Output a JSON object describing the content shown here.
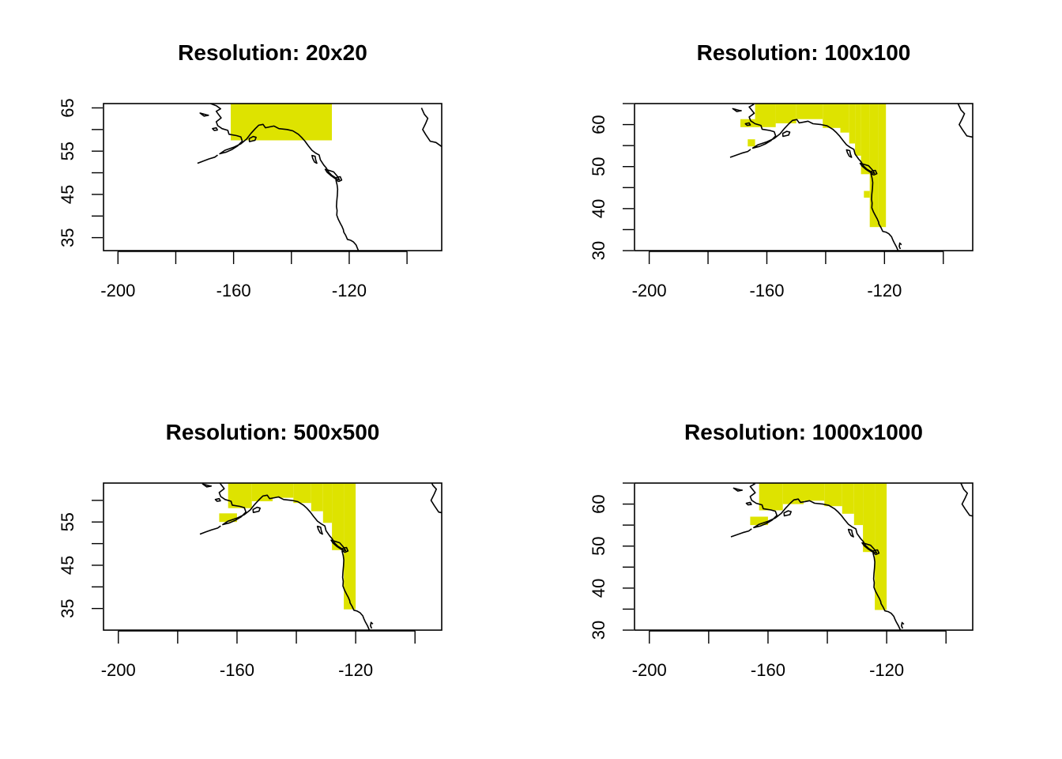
{
  "chart_data": [
    {
      "type": "map",
      "title": "Resolution: 20x20",
      "xlim": [
        -205,
        -88
      ],
      "ylim": [
        32,
        66
      ],
      "xticks": [
        -200,
        -180,
        -160,
        -140,
        -120,
        -100
      ],
      "xtick_labels": [
        "-200",
        "",
        "-160",
        "",
        "-120",
        ""
      ],
      "yticks": [
        35,
        40,
        45,
        50,
        55,
        60,
        65
      ],
      "ytick_labels": [
        "35",
        "",
        "45",
        "",
        "55",
        "",
        "65"
      ],
      "fill_color": "#DEE300",
      "fill_cells": [
        [
          -161,
          -126,
          57.5,
          66
        ]
      ]
    },
    {
      "type": "map",
      "title": "Resolution: 100x100",
      "xlim": [
        -205,
        -90
      ],
      "ylim": [
        30,
        65
      ],
      "xticks": [
        -200,
        -180,
        -160,
        -140,
        -120,
        -100
      ],
      "xtick_labels": [
        "-200",
        "",
        "-160",
        "",
        "-120",
        ""
      ],
      "yticks": [
        30,
        35,
        40,
        45,
        50,
        55,
        60,
        65
      ],
      "ytick_labels": [
        "30",
        "",
        "40",
        "",
        "50",
        "",
        "60",
        ""
      ],
      "fill_color": "#DEE300",
      "fill_cells": [
        [
          -169,
          -164,
          59.4,
          61.3
        ],
        [
          -166.5,
          -164,
          54.8,
          56.5
        ],
        [
          -164,
          -157,
          59.4,
          65
        ],
        [
          -157,
          -150,
          60.3,
          65
        ],
        [
          -150,
          -141,
          61.3,
          65
        ],
        [
          -141,
          -135,
          59.2,
          65
        ],
        [
          -135,
          -132,
          58.1,
          65
        ],
        [
          -132,
          -130,
          55.5,
          65
        ],
        [
          -130,
          -128,
          52.6,
          65
        ],
        [
          -128,
          -125,
          48.2,
          65
        ],
        [
          -125,
          -122,
          35.6,
          65
        ],
        [
          -122,
          -119.5,
          35.6,
          65
        ],
        [
          -127,
          -125,
          42.6,
          44.2
        ]
      ]
    },
    {
      "type": "map",
      "title": "Resolution: 500x500",
      "xlim": [
        -205,
        -91
      ],
      "ylim": [
        30,
        64
      ],
      "xticks": [
        -200,
        -180,
        -160,
        -140,
        -120,
        -100
      ],
      "xtick_labels": [
        "-200",
        "",
        "-160",
        "",
        "-120",
        ""
      ],
      "yticks": [
        35,
        40,
        45,
        50,
        55,
        60
      ],
      "ytick_labels": [
        "35",
        "",
        "45",
        "",
        "55",
        ""
      ],
      "fill_color": "#DEE300",
      "fill_cells": [
        [
          -163,
          -155,
          58.2,
          64
        ],
        [
          -155,
          -148,
          59.8,
          64
        ],
        [
          -148,
          -141,
          60.6,
          64
        ],
        [
          -141,
          -135,
          59.4,
          64
        ],
        [
          -135,
          -131,
          57.5,
          64
        ],
        [
          -131,
          -128,
          54.8,
          64
        ],
        [
          -128,
          -124,
          48.5,
          64
        ],
        [
          -124,
          -120,
          34.8,
          64
        ],
        [
          -166,
          -160,
          55.0,
          57.0
        ]
      ]
    },
    {
      "type": "map",
      "title": "Resolution: 1000x1000",
      "xlim": [
        -205,
        -91
      ],
      "ylim": [
        30,
        65
      ],
      "xticks": [
        -200,
        -180,
        -160,
        -140,
        -120,
        -100
      ],
      "xtick_labels": [
        "-200",
        "",
        "-160",
        "",
        "-120",
        ""
      ],
      "yticks": [
        30,
        35,
        40,
        45,
        50,
        55,
        60,
        65
      ],
      "ytick_labels": [
        "30",
        "",
        "40",
        "",
        "50",
        "",
        "60",
        ""
      ],
      "fill_color": "#DEE300",
      "fill_cells": [
        [
          -163,
          -155,
          58.5,
          65
        ],
        [
          -155,
          -148,
          60.0,
          65
        ],
        [
          -148,
          -141,
          60.8,
          65
        ],
        [
          -141,
          -135,
          59.5,
          65
        ],
        [
          -135,
          -131,
          57.7,
          65
        ],
        [
          -131,
          -128,
          55.0,
          65
        ],
        [
          -128,
          -124,
          48.6,
          65
        ],
        [
          -124,
          -120,
          34.8,
          65
        ],
        [
          -166,
          -160,
          55.0,
          57.0
        ]
      ]
    }
  ]
}
